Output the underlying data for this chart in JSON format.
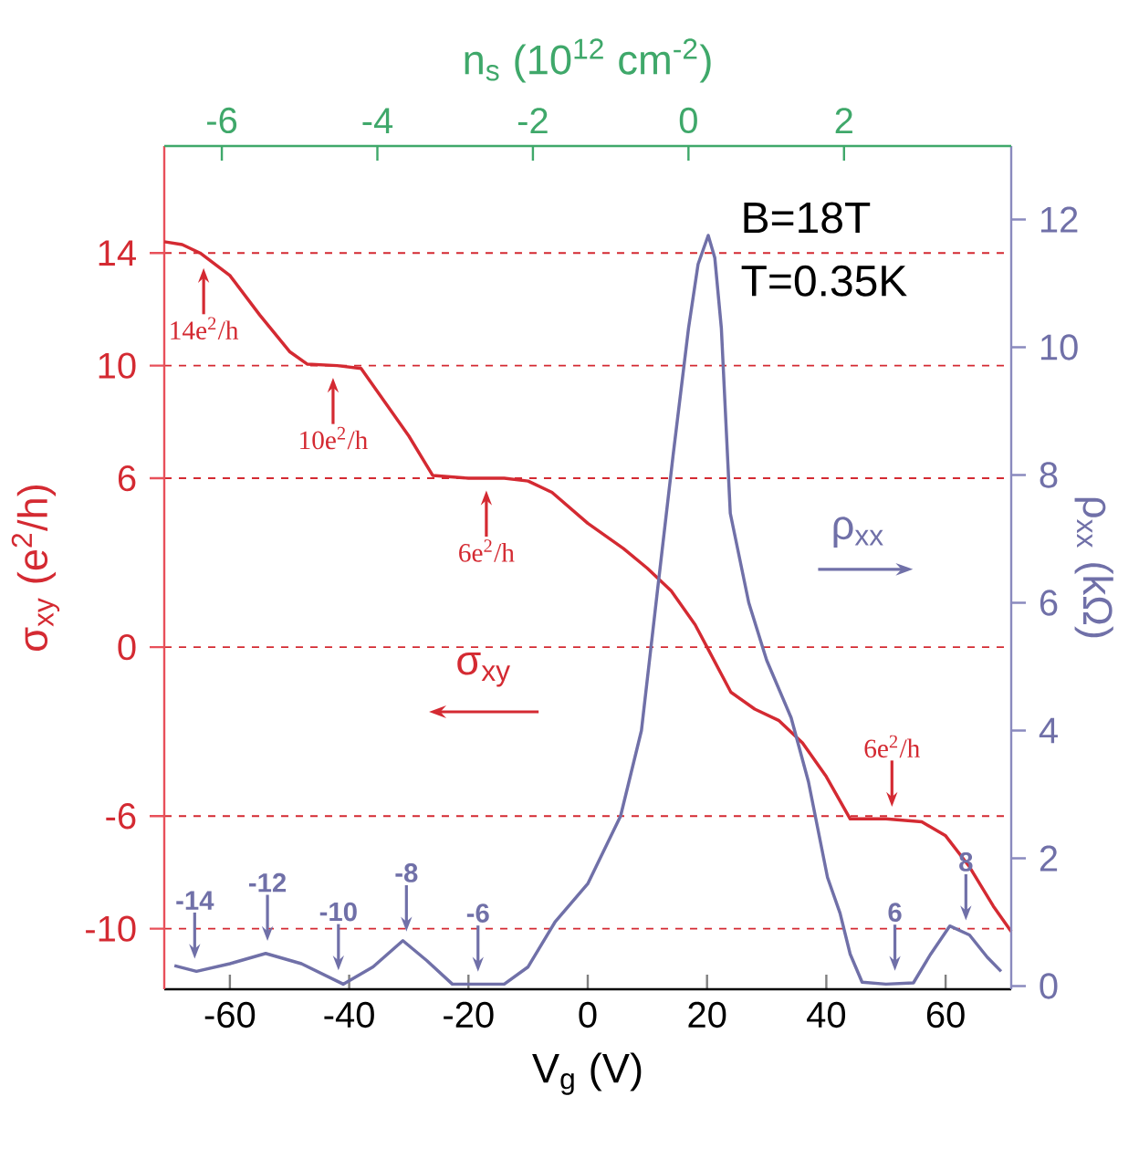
{
  "chart_data": {
    "type": "line",
    "xlabel": "V$_{g}$ (V)",
    "ylabel": "σ$_{xy}$ (e$^{2}$/h)",
    "y2label": "ρ$_{xx}$ (kΩ)",
    "x2label": "n$_{s}$ (10$^{12}$ cm$^{-2}$)",
    "xlim": [
      -71,
      71
    ],
    "ylim": [
      -12.15,
      17.8
    ],
    "y2lim": [
      -0.05,
      13.15
    ],
    "x2lim": [
      -6.74,
      4.15
    ],
    "xticks": [
      -60,
      -40,
      -20,
      0,
      20,
      40,
      60
    ],
    "yticks": [
      14,
      10,
      6,
      0,
      -6,
      -10
    ],
    "y2ticks": [
      0,
      2,
      4,
      6,
      8,
      10,
      12
    ],
    "x2ticks": [
      -6,
      -4,
      -2,
      0,
      2
    ],
    "grid": "y",
    "series": [
      {
        "name": "σ$_{xy}$",
        "color": "#d42a32",
        "axis": "y",
        "x": [
          -71,
          -68,
          -65,
          -60,
          -55,
          -50,
          -47,
          -42,
          -38,
          -35,
          -30,
          -26,
          -20,
          -14,
          -10,
          -6,
          0,
          6,
          10,
          14,
          18,
          20,
          24,
          28,
          32,
          36,
          40,
          44,
          50,
          56,
          60,
          64,
          68,
          71
        ],
        "values": [
          14.4,
          14.3,
          14.0,
          13.2,
          11.8,
          10.5,
          10.05,
          10,
          9.9,
          9.0,
          7.5,
          6.1,
          6.0,
          6.0,
          5.9,
          5.5,
          4.4,
          3.5,
          2.8,
          2.0,
          0.8,
          0.0,
          -1.6,
          -2.2,
          -2.6,
          -3.4,
          -4.6,
          -6.1,
          -6.1,
          -6.2,
          -6.7,
          -7.8,
          -9.2,
          -10.1
        ]
      },
      {
        "name": "ρ$_{xx}$",
        "color": "#7070a8",
        "axis": "y2",
        "x": [
          -69.3,
          -65.6,
          -60,
          -54,
          -48,
          -41,
          -36,
          -31,
          -27,
          -22.7,
          -14,
          -10,
          -5.5,
          0,
          5.5,
          9,
          11.7,
          14.3,
          16.9,
          18.5,
          20.2,
          21.3,
          22.4,
          23.9,
          27,
          30,
          34.1,
          37,
          40.2,
          42.3,
          44,
          46,
          50,
          54.6,
          57.5,
          60.7,
          64,
          67,
          69.3
        ],
        "values": [
          0.32,
          0.23,
          0.35,
          0.51,
          0.35,
          0.03,
          0.3,
          0.71,
          0.4,
          0.03,
          0.03,
          0.3,
          1.0,
          1.6,
          2.66,
          4.0,
          6.2,
          8.3,
          10.3,
          11.3,
          11.75,
          11.4,
          10.3,
          7.4,
          6.0,
          5.1,
          4.2,
          3.2,
          1.7,
          1.14,
          0.5,
          0.06,
          0.03,
          0.05,
          0.5,
          0.94,
          0.8,
          0.45,
          0.23
        ]
      }
    ],
    "annotations": [
      "B=18T",
      "T=0.35K",
      {
        "text": "14e$^{2}$/h",
        "x": -64.4,
        "y": 13.9
      },
      {
        "text": "10e$^{2}$/h",
        "x": -42.7,
        "y": 10
      },
      {
        "text": "6e$^{2}$/h",
        "x": -17,
        "y": 6
      },
      {
        "text": "6e$^{2}$/h",
        "x": 51,
        "y": -6.1
      },
      {
        "text": "-14",
        "x": -65.9,
        "y": -11.5
      },
      {
        "text": "-12",
        "x": -53.7,
        "y": -10.87
      },
      {
        "text": "-10",
        "x": -41.8,
        "y": -11.91
      },
      {
        "text": "-8",
        "x": -30.4,
        "y": -10.53
      },
      {
        "text": "-6",
        "x": -18.4,
        "y": -11.96
      },
      {
        "text": "6",
        "x": 51.5,
        "y": -11.93
      },
      {
        "text": "8",
        "x": 63.4,
        "y": -10.14
      }
    ]
  }
}
